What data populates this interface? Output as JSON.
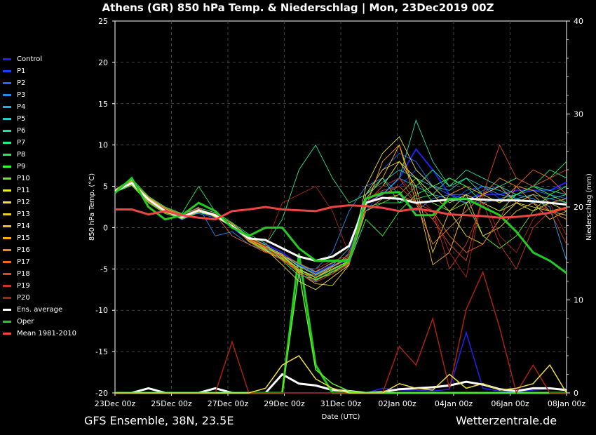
{
  "chart_data": {
    "type": "line",
    "title": "Athens  (GR)  850 hPa Temp. & Niederschlag | Mon, 23Dec2019 00Z",
    "xlabel": "Date (UTC)",
    "ylabel": "850 hPa Temp. (°C)",
    "y2label": "Niederschlag (mm)",
    "ylim": [
      -20,
      25
    ],
    "y2lim": [
      0,
      40
    ],
    "yticks": [
      25,
      20,
      15,
      10,
      5,
      0,
      -5,
      -10,
      -15,
      -20
    ],
    "y2ticks": [
      40,
      30,
      20,
      10,
      0
    ],
    "x_ticks": [
      "23Dec 00z",
      "25Dec 00z",
      "27Dec 00z",
      "29Dec 00z",
      "31Dec 00z",
      "02Jan 00z",
      "04Jan 00z",
      "06Jan 00z",
      "08Jan 00z"
    ],
    "grid": true,
    "legend_position": "left",
    "series": [
      {
        "name": "Control",
        "color": "#2222ee",
        "values": [
          4.5,
          5.5,
          3.5,
          2,
          1,
          2,
          1.5,
          0,
          -1.5,
          -2,
          -3,
          -4.5,
          -5.5,
          -4.5,
          -4,
          3,
          4,
          6,
          9.5,
          7,
          4,
          3.5,
          4,
          4,
          4.5,
          4.5,
          4.5,
          5.5
        ]
      },
      {
        "name": "P1",
        "color": "#1144ff",
        "values": [
          4.4,
          5.2,
          3.2,
          1.8,
          1.2,
          2.2,
          1.6,
          0.2,
          -1.2,
          -2.5,
          -3.5,
          -5,
          -6,
          -5,
          -4.5,
          2,
          4.5,
          5,
          7,
          5,
          3,
          4.5,
          5,
          3.5,
          4,
          5,
          4.5,
          5
        ]
      },
      {
        "name": "P2",
        "color": "#2266ff",
        "values": [
          4.6,
          5.4,
          3.4,
          2.1,
          1.5,
          1.7,
          1.2,
          0.5,
          -1,
          -2.2,
          -3.8,
          -5.5,
          -6.5,
          -5.2,
          -3,
          4,
          7,
          9,
          8,
          5,
          4,
          3,
          4.5,
          5,
          4,
          4.5,
          4,
          3.5
        ]
      },
      {
        "name": "P3",
        "color": "#2288ee",
        "values": [
          4.3,
          5.6,
          3.6,
          2.3,
          1.3,
          2.5,
          -1,
          -0.5,
          -2,
          -2.8,
          -3.2,
          -4.8,
          -5,
          -3,
          2,
          5,
          6,
          4,
          2,
          3.5,
          4,
          4,
          5,
          4,
          3.5,
          3,
          3.5,
          3
        ]
      },
      {
        "name": "P4",
        "color": "#22aaee",
        "values": [
          4.5,
          5.3,
          3.1,
          1.9,
          1.4,
          2,
          1.3,
          0.3,
          -1.4,
          -2.4,
          -3.6,
          -5.2,
          -5.8,
          -4.8,
          -3.5,
          3,
          5,
          6,
          5,
          4,
          3.5,
          3,
          3,
          3.5,
          4,
          3.5,
          2.5,
          -4
        ]
      },
      {
        "name": "P5",
        "color": "#22cccc",
        "values": [
          4.4,
          5.5,
          3.3,
          2,
          1.1,
          2.3,
          1.5,
          0.1,
          -1.6,
          -2.6,
          -3.4,
          -4.6,
          -5.6,
          -4.6,
          -2.5,
          4,
          5.5,
          7,
          6,
          5,
          4.5,
          6,
          5,
          4.5,
          3.5,
          4,
          3.5,
          4
        ]
      },
      {
        "name": "P6",
        "color": "#22ddaa",
        "values": [
          4.5,
          5.8,
          3.5,
          2.2,
          1,
          1.8,
          1.4,
          0.2,
          -1.3,
          -2.3,
          -3.3,
          -4.4,
          -5.4,
          -4.2,
          -3.8,
          3.5,
          4,
          6,
          13,
          8,
          5,
          7,
          6,
          5,
          4,
          5,
          4.5,
          4
        ]
      },
      {
        "name": "P7",
        "color": "#22ee88",
        "values": [
          4.2,
          5.7,
          3.7,
          2.4,
          1.6,
          2.4,
          1.8,
          0.4,
          -1.1,
          -2.1,
          1,
          7,
          10,
          6,
          3,
          4,
          6,
          3,
          5,
          7,
          5,
          6,
          4,
          5,
          6,
          5,
          7,
          6
        ]
      },
      {
        "name": "P8",
        "color": "#22ee55",
        "values": [
          4.6,
          5.9,
          3.8,
          2.5,
          1.7,
          5,
          1.9,
          0.6,
          -0.8,
          -1.9,
          -4,
          -5.8,
          -6.2,
          -5.6,
          -4,
          2.5,
          3,
          3,
          3.5,
          4,
          6,
          5,
          3,
          2,
          4,
          5,
          6,
          8
        ]
      },
      {
        "name": "P9",
        "color": "#33ff33",
        "values": [
          4.3,
          5.1,
          3,
          1.7,
          1.1,
          2.1,
          1.4,
          0.3,
          -1.5,
          -2.7,
          -3.7,
          -5.3,
          -6.3,
          -5.3,
          -4.2,
          1,
          -1,
          2,
          4,
          5,
          6,
          5,
          4,
          3,
          4,
          5,
          4,
          5
        ]
      },
      {
        "name": "P10",
        "color": "#66ee22",
        "values": [
          4.4,
          5.4,
          3.2,
          2,
          1.3,
          2.2,
          1.5,
          0.2,
          -1.4,
          -2.5,
          -3.5,
          -5.1,
          -6.1,
          -5.1,
          -4.1,
          2,
          3,
          4,
          6,
          3,
          2,
          3,
          -1,
          -2.5,
          -1,
          2,
          4,
          3
        ]
      },
      {
        "name": "P11",
        "color": "#eeee22",
        "values": [
          4.5,
          5.5,
          3.4,
          2.1,
          1.2,
          2,
          1.6,
          0.3,
          -1.2,
          -2.4,
          -3.4,
          -5,
          -6,
          -5,
          -4,
          3,
          5,
          8,
          6,
          4,
          2,
          -1,
          -2,
          1,
          3,
          2,
          3,
          2
        ]
      },
      {
        "name": "P12",
        "color": "#eedd44",
        "values": [
          4.4,
          5.6,
          3.5,
          2.2,
          1.4,
          2.3,
          1.3,
          0.1,
          -1.3,
          -2.6,
          -4.5,
          -6.5,
          -7.5,
          -6,
          -4.5,
          5,
          9,
          11,
          7,
          5,
          3,
          4,
          3,
          2,
          3,
          2.5,
          2,
          1.5
        ]
      },
      {
        "name": "P13",
        "color": "#eecc22",
        "values": [
          4.3,
          5.3,
          3.3,
          1.9,
          1.1,
          1.9,
          1.4,
          0.2,
          -1.6,
          -2.8,
          -3.8,
          -5.5,
          -6.8,
          -7,
          -4.5,
          4,
          7,
          8,
          5,
          -3,
          2,
          4,
          -1,
          0,
          2,
          3,
          1,
          2
        ]
      },
      {
        "name": "P14",
        "color": "#ffbb22",
        "values": [
          4.6,
          5.7,
          3.6,
          2.3,
          1.5,
          2.1,
          1.7,
          0.5,
          -1.1,
          -2.2,
          -3.2,
          -4.7,
          -5.7,
          -4.7,
          -3.7,
          3.5,
          6,
          10,
          4,
          -4.5,
          -3,
          3,
          4,
          5,
          3,
          4,
          2,
          2.5
        ]
      },
      {
        "name": "P15",
        "color": "#ffaa00",
        "values": [
          4.5,
          5.2,
          3.1,
          1.8,
          1.3,
          2.2,
          1.5,
          0.3,
          -1.4,
          -2.4,
          -3.6,
          -5.2,
          -6.4,
          -5.4,
          -4.3,
          2.5,
          8,
          10,
          3,
          1,
          4,
          5,
          4,
          3,
          5,
          4.5,
          3,
          3.5
        ]
      },
      {
        "name": "P16",
        "color": "#ee8822",
        "values": [
          4.4,
          5.5,
          3.7,
          2.4,
          1.6,
          2.4,
          1.2,
          0.4,
          -1.7,
          -2.9,
          -3.9,
          -5.4,
          -6,
          -4.8,
          -3.2,
          2,
          3.5,
          4,
          3,
          -2,
          0,
          2,
          4,
          6,
          5,
          3,
          2,
          1
        ]
      },
      {
        "name": "P17",
        "color": "#ee6622",
        "values": [
          4.5,
          5.6,
          3.4,
          2,
          1.2,
          2,
          1.6,
          -1,
          -2,
          -3,
          -3.3,
          -4.3,
          -5.3,
          -4.3,
          -3.6,
          3,
          4,
          5,
          3,
          2,
          -1,
          -3,
          -2,
          1,
          5,
          7,
          6,
          4
        ]
      },
      {
        "name": "P18",
        "color": "#dd4422",
        "values": [
          4.3,
          5.4,
          3.2,
          2.1,
          1.4,
          2.3,
          1.4,
          0.2,
          -1.5,
          -2.5,
          -3.5,
          -5.6,
          -6.6,
          -5.6,
          -4.4,
          3,
          5,
          6,
          3,
          1,
          -2,
          -4,
          4,
          10,
          6,
          5,
          6,
          7
        ]
      },
      {
        "name": "P19",
        "color": "#cc3322",
        "values": [
          4.4,
          5.3,
          3.5,
          2.2,
          1.3,
          2.1,
          1.5,
          0.1,
          -1.3,
          -2.3,
          -4,
          -5,
          -5,
          -4,
          -3.4,
          3.5,
          4.5,
          5,
          3,
          2,
          -5,
          -2,
          3,
          -2,
          -5,
          0,
          2,
          -2
        ]
      },
      {
        "name": "P20",
        "color": "#aa2211",
        "values": [
          4.5,
          5.5,
          3.3,
          2,
          1.5,
          2.2,
          1.7,
          0.4,
          -1.2,
          -2.2,
          3,
          4,
          5,
          2,
          -3.2,
          3,
          5,
          6,
          4,
          2,
          -3,
          -6,
          4,
          -1,
          -3,
          1,
          3,
          -1
        ]
      },
      {
        "name": "Ens. average",
        "color": "#ffffff",
        "values": [
          4.4,
          5.4,
          3.4,
          2,
          1.3,
          2.1,
          1.5,
          0.2,
          -1.3,
          -1.5,
          -2.5,
          -3.5,
          -4,
          -3.5,
          -2.2,
          3,
          3.6,
          3.5,
          3,
          3.2,
          3.4,
          3.5,
          3.4,
          3.3,
          3.3,
          3.2,
          3,
          2.8
        ]
      },
      {
        "name": "Oper",
        "color": "#22cc22",
        "values": [
          4.2,
          6,
          2.5,
          1,
          1.5,
          3,
          2,
          0,
          -1,
          0,
          0,
          -2.5,
          -4,
          -4,
          -4,
          3.5,
          4.2,
          4.3,
          1.5,
          1.5,
          3.5,
          3.5,
          2.5,
          1.5,
          -0.5,
          -3,
          -4,
          -5.5
        ]
      },
      {
        "name": "Mean 1981-2010",
        "color": "#ee4444",
        "values": [
          2.2,
          2.2,
          1.6,
          2,
          1.5,
          1.2,
          1,
          2,
          2.2,
          2.5,
          2.2,
          2.1,
          2,
          2.5,
          2.7,
          2.6,
          2.4,
          2,
          2.3,
          2,
          1.6,
          1.5,
          1.4,
          1.2,
          1.3,
          1.5,
          1.8,
          2.4
        ]
      }
    ],
    "precip_mm": {
      "Control": [
        0,
        0,
        0,
        0,
        0,
        0,
        0,
        0,
        0,
        0,
        0,
        0,
        0,
        0,
        0,
        0,
        0.5,
        0.3,
        0.3,
        0.2,
        0.4,
        6.5,
        0.5,
        0.2,
        0.1,
        0.3,
        0.4,
        0.5
      ],
      "Ens. average": [
        0,
        0,
        0.5,
        0,
        0,
        0,
        0.5,
        0,
        0,
        0,
        2,
        1,
        0.8,
        0.3,
        0.2,
        0,
        0.1,
        0.4,
        0.5,
        0.6,
        0.8,
        1.2,
        0.9,
        0.4,
        0.2,
        0.5,
        0.5,
        0.3
      ],
      "Oper": [
        0,
        0,
        0,
        0,
        0,
        0,
        0,
        0,
        0,
        0,
        0,
        15,
        3,
        0,
        0,
        0,
        0,
        0,
        0,
        0,
        0,
        0,
        0,
        0,
        0,
        0,
        0,
        0
      ],
      "P10": [
        0,
        0,
        0,
        0,
        0,
        0,
        0,
        0,
        0,
        0,
        0,
        13,
        2.5,
        1,
        0.2,
        0,
        0,
        0,
        0,
        0,
        0,
        0,
        0,
        0,
        0,
        0,
        0,
        0
      ],
      "P20": [
        0,
        0,
        0,
        0,
        0,
        0,
        0,
        5.5,
        0,
        0,
        0,
        0,
        0,
        0,
        0,
        0,
        0,
        5,
        3,
        8,
        0.5,
        9,
        13,
        7,
        0,
        3,
        0,
        0
      ],
      "P12": [
        0,
        0,
        0,
        0,
        0,
        0,
        0,
        0,
        0,
        0.5,
        3,
        4,
        1.5,
        0.5,
        0,
        0,
        0,
        1,
        0.5,
        0.3,
        2,
        0.5,
        1,
        0.3,
        0.5,
        1,
        3,
        0
      ]
    }
  },
  "footer": {
    "left": "GFS Ensemble, 38N, 23.5E",
    "right": "Wetterzentrale.de"
  }
}
